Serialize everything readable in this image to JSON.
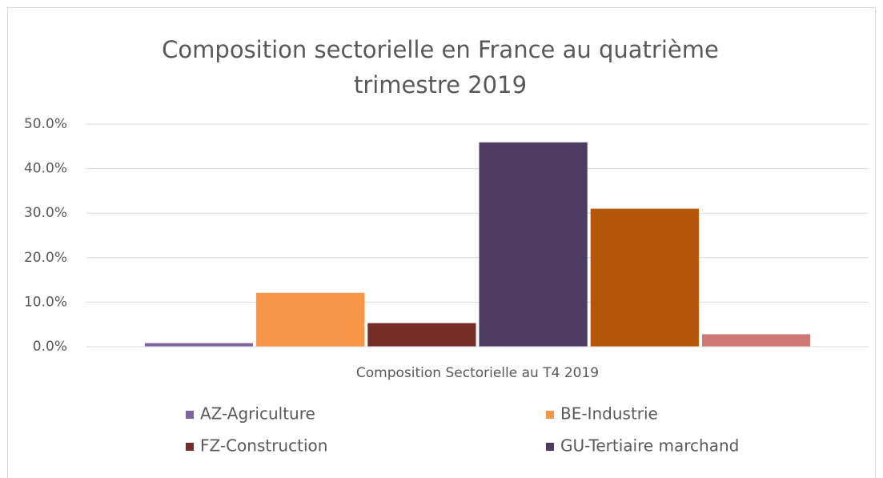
{
  "chart_data": {
    "type": "bar",
    "title": "Composition sectorielle en France au quatrième trimestre 2019",
    "categories": [
      "Composition Sectorielle au T4 2019"
    ],
    "series": [
      {
        "name": "AZ-Agriculture",
        "color": "#8064a2",
        "values": [
          0.8
        ]
      },
      {
        "name": "BE-Industrie",
        "color": "#f79646",
        "values": [
          12.1
        ]
      },
      {
        "name": "FZ-Construction",
        "color": "#772c2a",
        "values": [
          5.3
        ]
      },
      {
        "name": "GU-Tertiaire marchand",
        "color": "#4d3b62",
        "values": [
          45.9
        ]
      },
      {
        "color": "#b65708",
        "values": [
          31.0
        ]
      },
      {
        "color": "#d07878",
        "values": [
          2.8
        ]
      }
    ],
    "ylim": [
      0,
      50
    ],
    "yticks": [
      {
        "value": 0,
        "label": "0.0%"
      },
      {
        "value": 10,
        "label": "10.0%"
      },
      {
        "value": 20,
        "label": "20.0%"
      },
      {
        "value": 30,
        "label": "30.0%"
      },
      {
        "value": 40,
        "label": "40.0%"
      },
      {
        "value": 50,
        "label": "50.0%"
      }
    ],
    "grid": true
  }
}
